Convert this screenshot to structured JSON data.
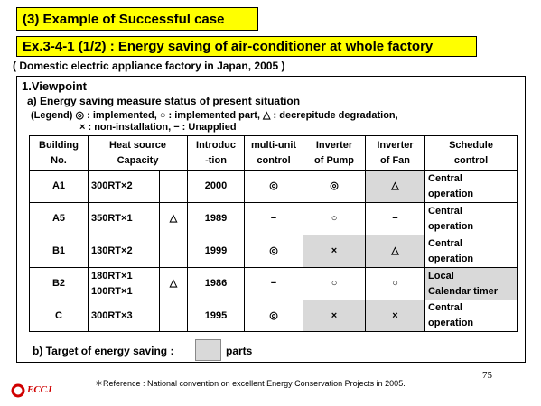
{
  "header": {
    "section": "(3) Example of Successful case",
    "title": "Ex.3-4-1 (1/2) : Energy saving of air-conditioner at whole factory",
    "subtitle": "( Domestic electric appliance factory in Japan, 2005 )"
  },
  "viewpoint": {
    "heading": "1.Viewpoint",
    "subheading": "a) Energy saving measure status of present situation",
    "legend_line1": "(Legend) ◎ : implemented, ○ : implemented part, △ : decrepitude degradation,",
    "legend_line2": "× : non-installation, − : Unapplied"
  },
  "table": {
    "headers": [
      "Building\nNo.",
      "Heat source\nCapacity",
      "Introduc\n-tion",
      "multi-unit\ncontrol",
      "Inverter\nof Pump",
      "Inverter\nof Fan",
      "Schedule\ncontrol"
    ],
    "rows": [
      {
        "cells": [
          "A1",
          "300RT×2",
          null,
          "2000",
          "◎",
          "◎",
          "△",
          "Central\noperation"
        ],
        "shaded": [
          6
        ]
      },
      {
        "cells": [
          "A5",
          "350RT×1",
          "△",
          "1989",
          "−",
          "○",
          "−",
          "Central\noperation"
        ],
        "shaded": []
      },
      {
        "cells": [
          "B1",
          "130RT×2",
          null,
          "1999",
          "◎",
          "×",
          "△",
          "Central\noperation"
        ],
        "shaded": [
          5,
          6
        ]
      },
      {
        "cells": [
          "B2",
          "180RT×1\n100RT×1",
          "△",
          "1986",
          "−",
          "○",
          "○",
          "Local\nCalendar timer"
        ],
        "shaded": [
          7
        ]
      },
      {
        "cells": [
          "C",
          "300RT×3",
          null,
          "1995",
          "◎",
          "×",
          "×",
          "Central\noperation"
        ],
        "shaded": [
          5,
          6
        ]
      }
    ]
  },
  "target": {
    "label": "b) Target of energy saving :",
    "suffix": "parts"
  },
  "reference": "＊Reference : National convention on excellent Energy Conservation Projects in 2005.",
  "page_number": "75",
  "logo": "ECCJ"
}
